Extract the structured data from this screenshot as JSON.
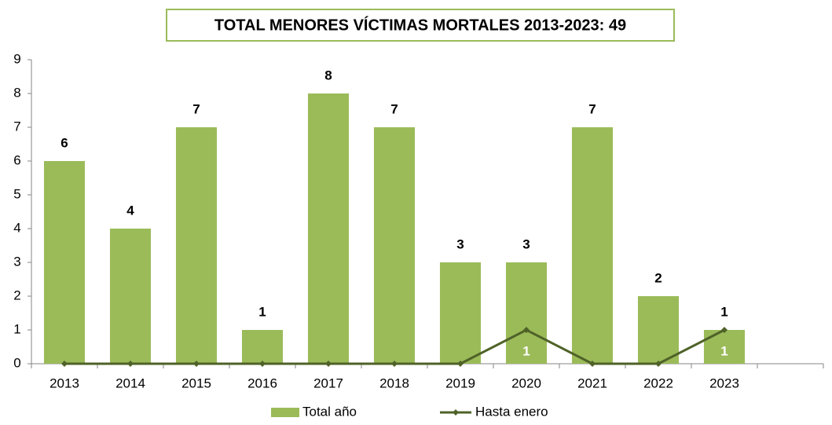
{
  "chart_data": {
    "type": "bar-line",
    "title": "TOTAL MENORES VÍCTIMAS MORTALES 2013-2023: 49",
    "categories": [
      "2013",
      "2014",
      "2015",
      "2016",
      "2017",
      "2018",
      "2019",
      "2020",
      "2021",
      "2022",
      "2023"
    ],
    "series": [
      {
        "name": "Total año",
        "type": "bar",
        "color": "#9bbb59",
        "values": [
          6,
          4,
          7,
          1,
          8,
          7,
          3,
          3,
          7,
          2,
          1
        ]
      },
      {
        "name": "Hasta enero",
        "type": "line",
        "color": "#4f6228",
        "values": [
          0,
          0,
          0,
          0,
          0,
          0,
          0,
          1,
          0,
          0,
          1
        ],
        "value_labels": [
          null,
          null,
          null,
          null,
          null,
          null,
          null,
          "1",
          null,
          null,
          "1"
        ]
      }
    ],
    "ylim": [
      0,
      9
    ],
    "yticks": [
      0,
      1,
      2,
      3,
      4,
      5,
      6,
      7,
      8,
      9
    ],
    "grid": false,
    "legend": "bottom"
  }
}
